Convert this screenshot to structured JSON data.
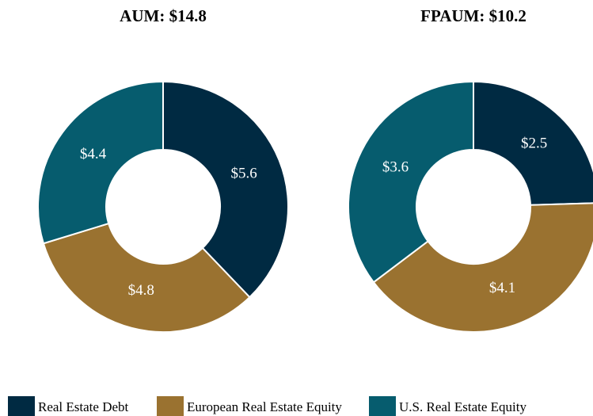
{
  "chart_data": [
    {
      "type": "pie",
      "title": "AUM: $14.8",
      "categories": [
        "Real Estate Debt",
        "European Real Estate Equity",
        "U.S. Real Estate Equity"
      ],
      "values": [
        5.6,
        4.8,
        4.4
      ],
      "value_labels": [
        "$5.6",
        "$4.8",
        "$4.4"
      ],
      "colors": [
        "#002a42",
        "#9a7230",
        "#065c6e"
      ],
      "donut": true
    },
    {
      "type": "pie",
      "title": "FPAUM: $10.2",
      "categories": [
        "Real Estate Debt",
        "European Real Estate Equity",
        "U.S. Real Estate Equity"
      ],
      "values": [
        2.5,
        4.1,
        3.6
      ],
      "value_labels": [
        "$2.5",
        "$4.1",
        "$3.6"
      ],
      "colors": [
        "#002a42",
        "#9a7230",
        "#065c6e"
      ],
      "donut": true
    }
  ]
}
